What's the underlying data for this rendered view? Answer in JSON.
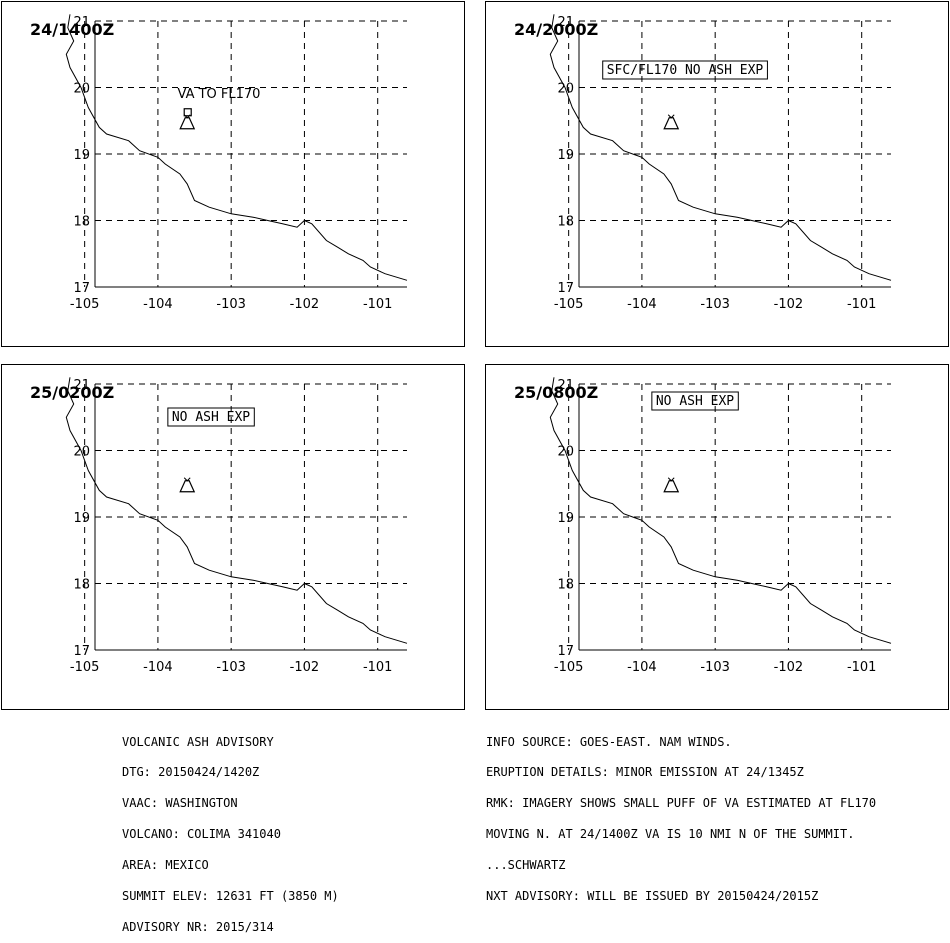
{
  "panels": [
    {
      "time": "24/1400Z",
      "label": "VA TO FL170",
      "boxed": false
    },
    {
      "time": "24/2000Z",
      "label": "SFC/FL170 NO ASH EXP",
      "boxed": true
    },
    {
      "time": "25/0200Z",
      "label": "NO ASH EXP",
      "boxed": true
    },
    {
      "time": "25/0800Z",
      "label": "NO ASH EXP",
      "boxed": true
    }
  ],
  "map": {
    "lon_ticks": [
      "-105",
      "-104",
      "-103",
      "-102",
      "-101"
    ],
    "lat_ticks": [
      "21",
      "20",
      "19",
      "18",
      "17"
    ],
    "lon_range": [
      -105.2,
      -100.6
    ],
    "lat_range": [
      17,
      21
    ],
    "volcano": {
      "name": "COLIMA",
      "lon": -103.6,
      "lat": 19.5
    },
    "coastline": [
      [
        -105.2,
        21.1
      ],
      [
        -105.23,
        20.9
      ],
      [
        -105.15,
        20.7
      ],
      [
        -105.25,
        20.5
      ],
      [
        -105.2,
        20.3
      ],
      [
        -105.05,
        20.0
      ],
      [
        -104.95,
        19.7
      ],
      [
        -104.8,
        19.4
      ],
      [
        -104.7,
        19.3
      ],
      [
        -104.4,
        19.2
      ],
      [
        -104.25,
        19.05
      ],
      [
        -104.0,
        18.95
      ],
      [
        -103.9,
        18.85
      ],
      [
        -103.7,
        18.7
      ],
      [
        -103.6,
        18.55
      ],
      [
        -103.5,
        18.3
      ],
      [
        -103.3,
        18.2
      ],
      [
        -103.0,
        18.1
      ],
      [
        -102.7,
        18.05
      ],
      [
        -102.5,
        18.0
      ],
      [
        -102.3,
        17.95
      ],
      [
        -102.1,
        17.9
      ],
      [
        -102.0,
        18.0
      ],
      [
        -101.9,
        17.95
      ],
      [
        -101.7,
        17.7
      ],
      [
        -101.55,
        17.6
      ],
      [
        -101.4,
        17.5
      ],
      [
        -101.2,
        17.4
      ],
      [
        -101.1,
        17.3
      ],
      [
        -100.9,
        17.2
      ],
      [
        -100.6,
        17.1
      ]
    ]
  },
  "footer_left": [
    "VOLCANIC ASH ADVISORY",
    "DTG: 20150424/1420Z",
    "VAAC: WASHINGTON",
    "VOLCANO: COLIMA 341040",
    "AREA: MEXICO",
    "SUMMIT ELEV: 12631 FT (3850 M)",
    "ADVISORY NR: 2015/314"
  ],
  "footer_right": [
    "INFO SOURCE: GOES-EAST. NAM WINDS.",
    "ERUPTION DETAILS: MINOR EMISSION AT 24/1345Z",
    "RMK: IMAGERY SHOWS SMALL PUFF OF VA ESTIMATED AT FL170",
    "MOVING N. AT 24/1400Z VA IS 10 NMI N OF THE SUMMIT.",
    "...SCHWARTZ",
    "NXT ADVISORY: WILL BE ISSUED BY 20150424/2015Z"
  ]
}
